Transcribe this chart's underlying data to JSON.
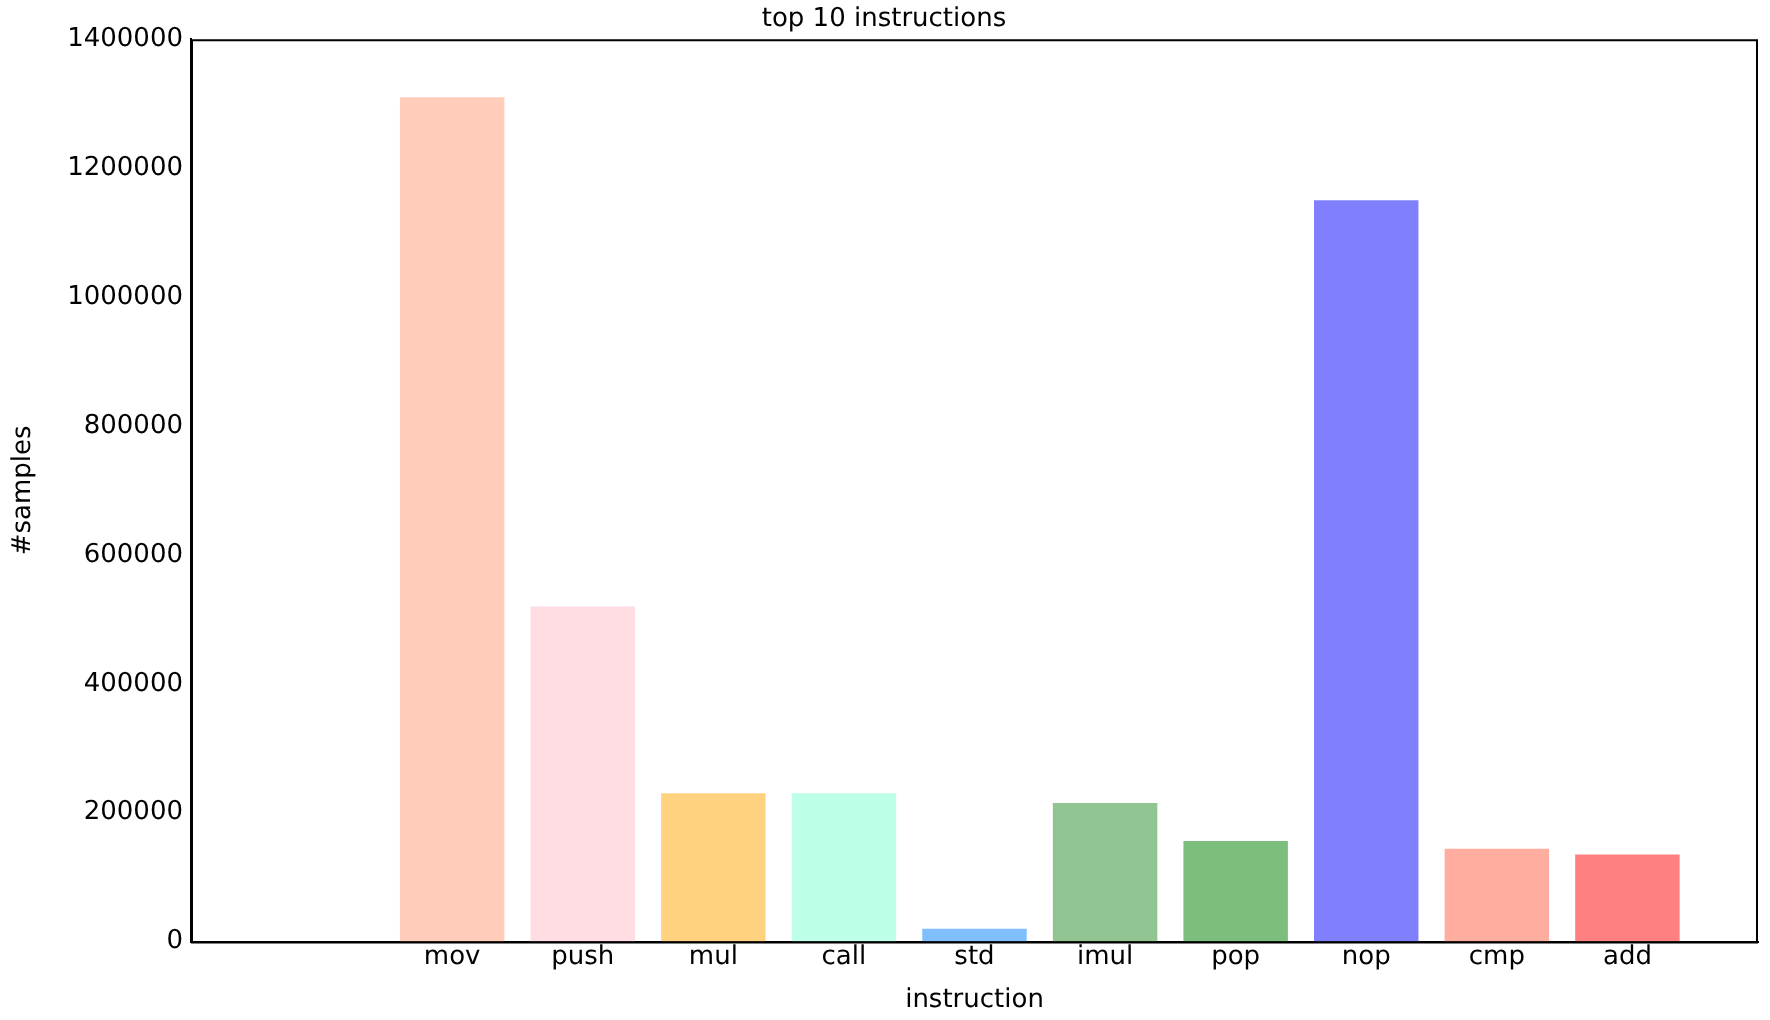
{
  "chart_data": {
    "type": "bar",
    "title": "top 10 instructions",
    "xlabel": "instruction",
    "ylabel": "#samples",
    "categories": [
      null,
      null,
      "mov",
      "push",
      "mul",
      "call",
      "std",
      "imul",
      "pop",
      "nop",
      "cmp",
      "add",
      null
    ],
    "values": [
      null,
      null,
      1310000,
      520000,
      230000,
      230000,
      20000,
      215000,
      156000,
      1150000,
      144000,
      135000,
      null
    ],
    "colors": [
      "#ffffff",
      "#ffffff",
      "#ffcdb9",
      "#ffdde3",
      "#ffd27f",
      "#bdffe7",
      "#80bfff",
      "#90c490",
      "#7cbf7c",
      "#8080ff",
      "#ffad9f",
      "#ff8080",
      "#ffffff"
    ],
    "ylim": [
      0,
      1400000
    ],
    "yticks": [
      0,
      200000,
      400000,
      600000,
      800000,
      1000000,
      1200000,
      1400000
    ],
    "grid": false,
    "legend": false
  }
}
